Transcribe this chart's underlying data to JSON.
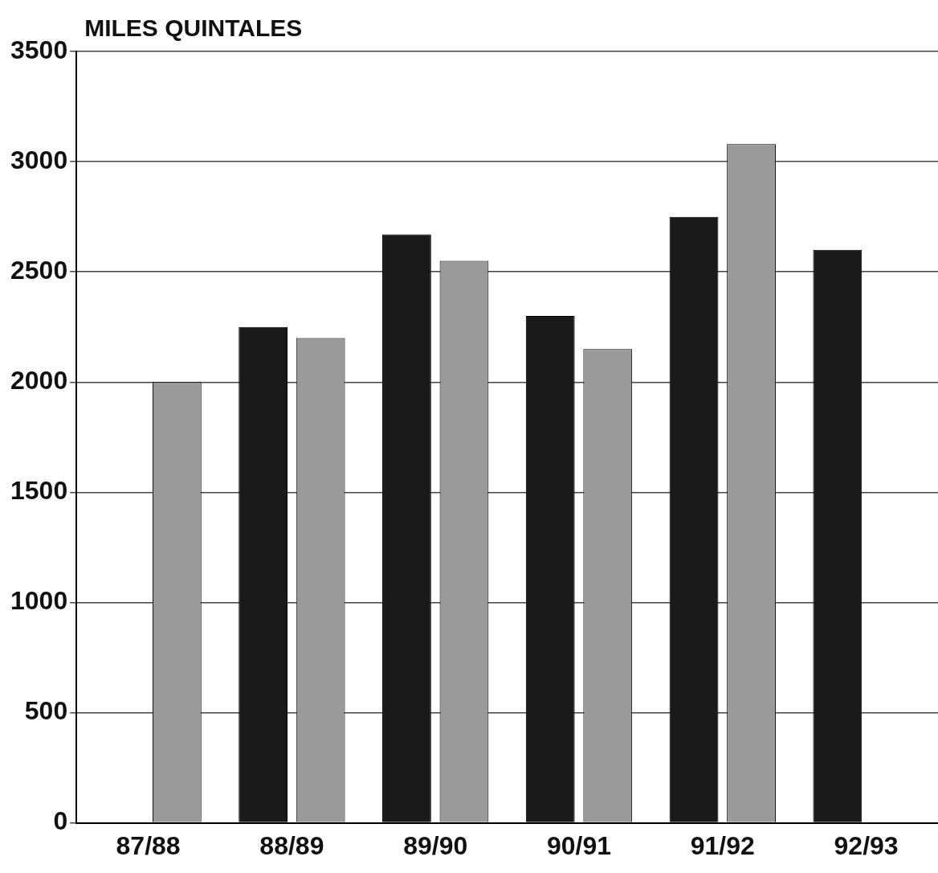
{
  "chart_data": {
    "type": "bar",
    "ylabel": "MILES QUINTALES",
    "categories": [
      "87/88",
      "88/89",
      "89/90",
      "90/91",
      "91/92",
      "92/93"
    ],
    "series": [
      {
        "color": "#1a1a1a",
        "values": [
          null,
          2250,
          2670,
          2300,
          2750,
          2600
        ]
      },
      {
        "color": "#9a9a9a",
        "values": [
          2000,
          2200,
          2550,
          2150,
          3080,
          null
        ]
      }
    ],
    "ylim": [
      0,
      3500
    ],
    "yticks": [
      0,
      500,
      1000,
      1500,
      2000,
      2500,
      3000,
      3500
    ],
    "grid": "y",
    "legend": false
  }
}
